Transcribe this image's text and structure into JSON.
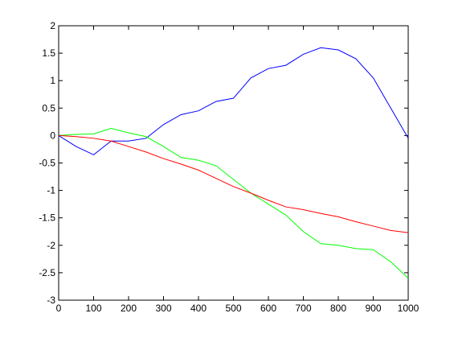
{
  "chart_data": {
    "type": "line",
    "x": [
      0,
      50,
      100,
      150,
      200,
      250,
      300,
      350,
      400,
      450,
      500,
      550,
      600,
      650,
      700,
      750,
      800,
      850,
      900,
      950,
      1000
    ],
    "series": [
      {
        "color": "#0000ff",
        "values": [
          0,
          -0.2,
          -0.35,
          -0.1,
          -0.1,
          -0.05,
          0.2,
          0.38,
          0.45,
          0.62,
          0.68,
          1.05,
          1.22,
          1.28,
          1.48,
          1.6,
          1.56,
          1.4,
          1.05,
          0.5,
          -0.05
        ]
      },
      {
        "color": "#00ff00",
        "values": [
          0,
          0.02,
          0.03,
          0.13,
          0.05,
          -0.02,
          -0.2,
          -0.4,
          -0.45,
          -0.55,
          -0.8,
          -1.05,
          -1.25,
          -1.45,
          -1.75,
          -1.97,
          -2.0,
          -2.06,
          -2.08,
          -2.3,
          -2.6
        ]
      },
      {
        "color": "#ff0000",
        "values": [
          0,
          -0.02,
          -0.05,
          -0.1,
          -0.2,
          -0.3,
          -0.42,
          -0.52,
          -0.63,
          -0.78,
          -0.93,
          -1.05,
          -1.18,
          -1.3,
          -1.35,
          -1.42,
          -1.48,
          -1.57,
          -1.65,
          -1.73,
          -1.77
        ]
      }
    ],
    "xlim": [
      0,
      1000
    ],
    "xticks": [
      0,
      100,
      200,
      300,
      400,
      500,
      600,
      700,
      800,
      900,
      1000
    ],
    "ylim": [
      -3,
      2
    ],
    "yticks": [
      -3,
      -2.5,
      -2,
      -1.5,
      -1,
      -0.5,
      0,
      0.5,
      1,
      1.5,
      2
    ],
    "grid": false
  }
}
